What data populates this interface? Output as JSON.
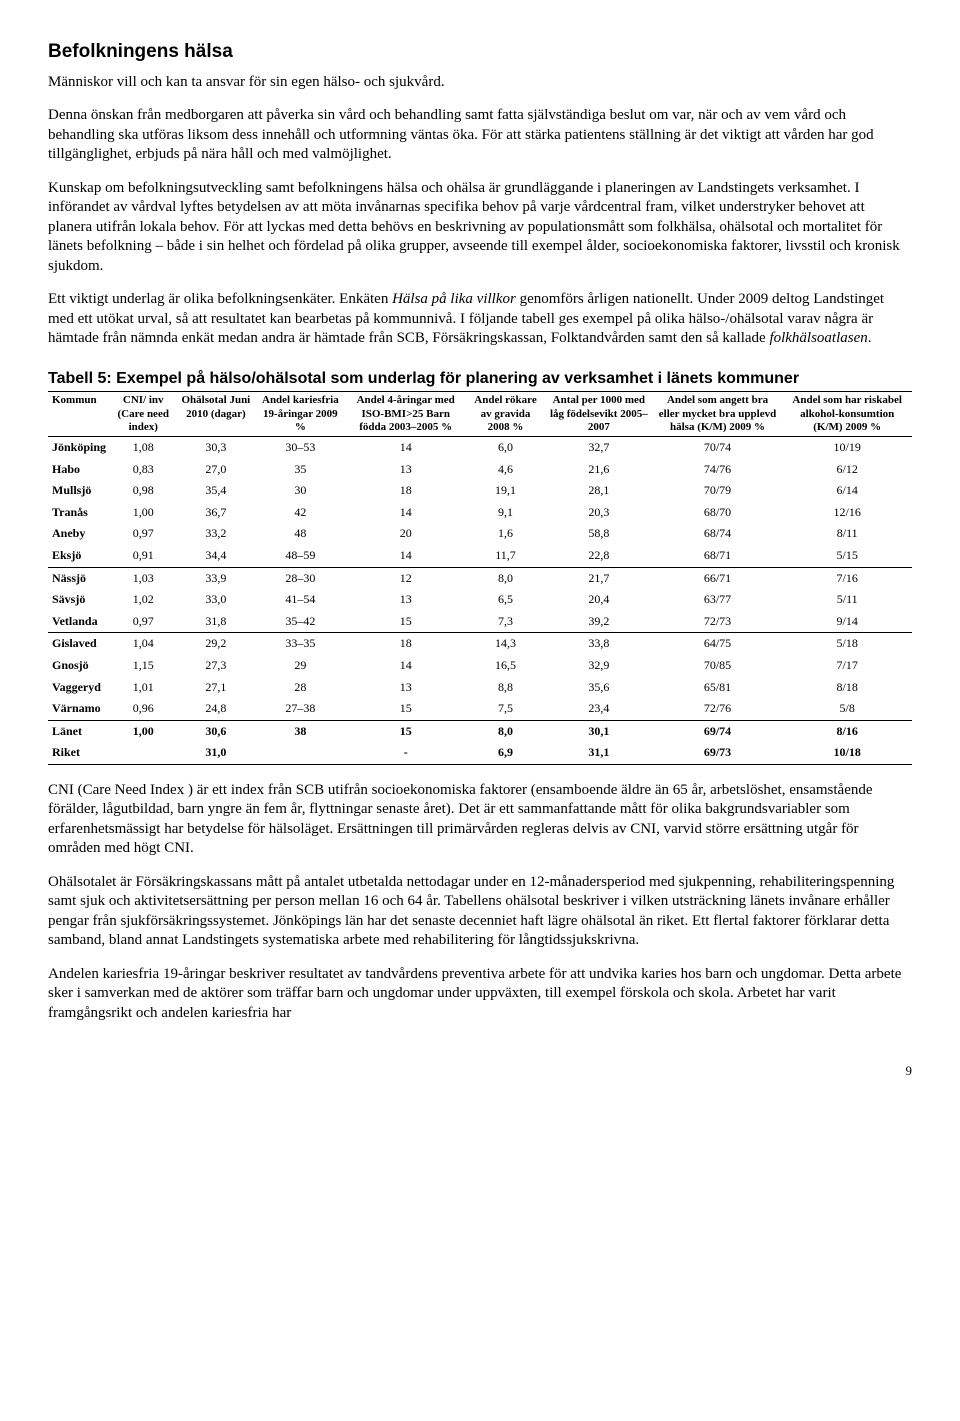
{
  "title": "Befolkningens hälsa",
  "paragraphs": {
    "p1": "Människor vill och kan ta ansvar för sin egen hälso- och sjukvård.",
    "p2": "Denna önskan från medborgaren att påverka sin vård och behandling samt fatta självständiga beslut om var, när och av vem vård och behandling ska utföras liksom dess innehåll och utformning väntas öka. För att stärka patientens ställning är det viktigt att vården har god tillgänglighet, erbjuds på nära håll och med valmöjlighet.",
    "p3": "Kunskap om befolkningsutveckling samt befolkningens hälsa och ohälsa är grundläggande i planeringen av Landstingets verksamhet. I införandet av vårdval lyftes betydelsen av att möta invånarnas specifika behov på varje vårdcentral fram, vilket understryker behovet att planera utifrån lokala behov. För att lyckas med detta behövs en beskrivning av populationsmått som folkhälsa, ohälsotal och mortalitet för länets befolkning – både i sin helhet och fördelad på olika grupper, avseende till exempel ålder, socioekonomiska faktorer, livsstil och kronisk sjukdom.",
    "p4a": "Ett viktigt underlag är olika befolkningsenkäter. Enkäten ",
    "p4i": "Hälsa på lika villkor",
    "p4b": " genomförs årligen nationellt. Under 2009 deltog Landstinget med ett utökat urval, så att resultatet kan bearbetas på kommunnivå. I följande tabell ges exempel på olika hälso-/ohälsotal varav några är hämtade från nämnda enkät medan andra är hämtade från SCB, Försäkringskassan, Folktandvården samt den så kallade ",
    "p4i2": "folkhälsoatlasen",
    "p4c": ".",
    "p5": "CNI (Care Need Index ) är ett index från SCB utifrån socioekonomiska faktorer (ensamboende äldre än 65 år, arbetslöshet, ensamstående förälder, lågutbildad, barn yngre än fem år, flyttningar senaste året). Det är ett sammanfattande mått för olika bakgrundsvariabler som erfarenhetsmässigt har betydelse för hälsoläget. Ersättningen till primärvården regleras delvis av CNI, varvid större ersättning utgår för områden med högt CNI.",
    "p6": "Ohälsotalet är Försäkringskassans mått på antalet utbetalda nettodagar under en 12-månadersperiod med sjukpenning, rehabiliteringspenning samt sjuk och aktivitetsersättning per person mellan 16 och 64 år. Tabellens ohälsotal beskriver i vilken utsträckning länets invånare erhåller pengar från sjukförsäkringssystemet. Jönköpings län har det senaste decenniet haft lägre ohälsotal än riket. Ett flertal faktorer förklarar detta samband, bland annat Landstingets systematiska arbete med rehabilitering för långtidssjukskrivna.",
    "p7": "Andelen kariesfria 19-åringar beskriver resultatet av tandvårdens preventiva arbete för att undvika karies hos barn och ungdomar. Detta arbete sker i samverkan med de aktörer som träffar barn och ungdomar under uppväxten, till exempel förskola och skola. Arbetet har varit framgångsrikt och andelen kariesfria har"
  },
  "table": {
    "title": "Tabell 5: Exempel på hälso/ohälsotal som underlag för planering av verksamhet i länets kommuner",
    "columns": [
      "Kommun",
      "CNI/ inv (Care need index)",
      "Ohälsotal Juni 2010 (dagar)",
      "Andel kariesfria 19-åringar 2009 %",
      "Andel 4-åringar med ISO-BMI>25 Barn födda 2003–2005 %",
      "Andel rökare av gravida 2008 %",
      "Antal per 1000 med låg födelsevikt 2005–2007",
      "Andel som angett bra eller mycket bra upplevd hälsa (K/M) 2009 %",
      "Andel som har riskabel alkohol-konsumtion (K/M) 2009 %"
    ],
    "rows": [
      [
        "Jönköping",
        "1,08",
        "30,3",
        "30–53",
        "14",
        "6,0",
        "32,7",
        "70/74",
        "10/19"
      ],
      [
        "Habo",
        "0,83",
        "27,0",
        "35",
        "13",
        "4,6",
        "21,6",
        "74/76",
        "6/12"
      ],
      [
        "Mullsjö",
        "0,98",
        "35,4",
        "30",
        "18",
        "19,1",
        "28,1",
        "70/79",
        "6/14"
      ],
      [
        "Tranås",
        "1,00",
        "36,7",
        "42",
        "14",
        "9,1",
        "20,3",
        "68/70",
        "12/16"
      ],
      [
        "Aneby",
        "0,97",
        "33,2",
        "48",
        "20",
        "1,6",
        "58,8",
        "68/74",
        "8/11"
      ],
      [
        "Eksjö",
        "0,91",
        "34,4",
        "48–59",
        "14",
        "11,7",
        "22,8",
        "68/71",
        "5/15"
      ],
      [
        "Nässjö",
        "1,03",
        "33,9",
        "28–30",
        "12",
        "8,0",
        "21,7",
        "66/71",
        "7/16"
      ],
      [
        "Sävsjö",
        "1,02",
        "33,0",
        "41–54",
        "13",
        "6,5",
        "20,4",
        "63/77",
        "5/11"
      ],
      [
        "Vetlanda",
        "0,97",
        "31,8",
        "35–42",
        "15",
        "7,3",
        "39,2",
        "72/73",
        "9/14"
      ],
      [
        "Gislaved",
        "1,04",
        "29,2",
        "33–35",
        "18",
        "14,3",
        "33,8",
        "64/75",
        "5/18"
      ],
      [
        "Gnosjö",
        "1,15",
        "27,3",
        "29",
        "14",
        "16,5",
        "32,9",
        "70/85",
        "7/17"
      ],
      [
        "Vaggeryd",
        "1,01",
        "27,1",
        "28",
        "13",
        "8,8",
        "35,6",
        "65/81",
        "8/18"
      ],
      [
        "Värnamo",
        "0,96",
        "24,8",
        "27–38",
        "15",
        "7,5",
        "23,4",
        "72/76",
        "5/8"
      ],
      [
        "Länet",
        "1,00",
        "30,6",
        "38",
        "15",
        "8,0",
        "30,1",
        "69/74",
        "8/16"
      ],
      [
        "Riket",
        "",
        "31,0",
        "",
        "-",
        "6,9",
        "31,1",
        "69/73",
        "10/18"
      ]
    ],
    "separatorBefore": [
      6,
      9,
      13
    ],
    "summaryRows": [
      13,
      14
    ]
  },
  "pageNumber": "9"
}
